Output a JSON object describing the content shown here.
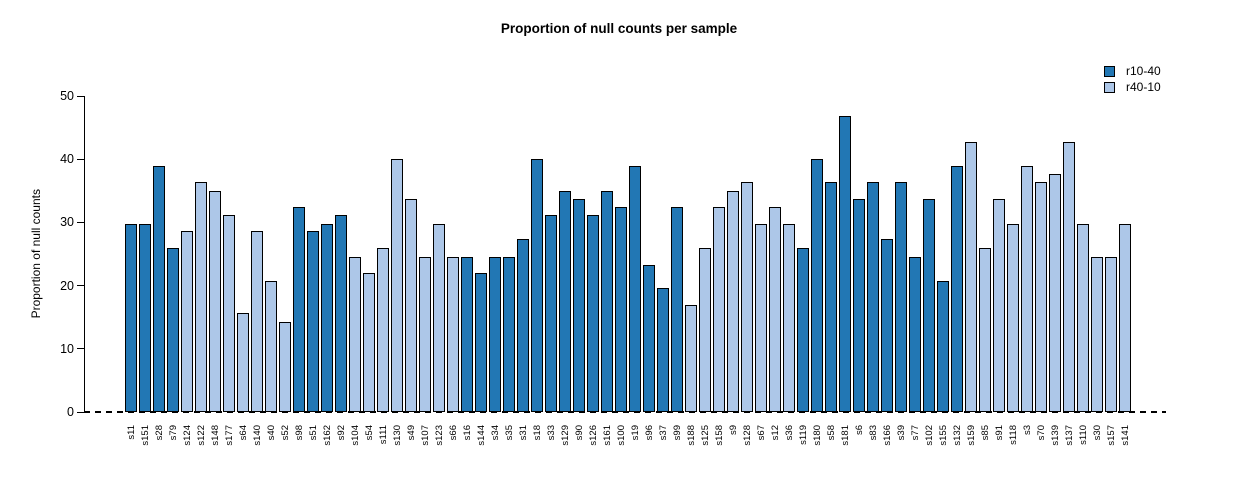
{
  "chart_data": {
    "type": "bar",
    "title": "Proportion of null counts per sample",
    "ylabel": "Proportion of null counts",
    "xlabel": "",
    "ylim": [
      0,
      50
    ],
    "yticks": [
      0,
      10,
      20,
      30,
      40,
      50
    ],
    "grid": false,
    "legend_position": "top-right",
    "zero_line_style": "dashed-black",
    "legend": [
      {
        "label": "r10-40",
        "color": "#2277b4"
      },
      {
        "label": "r40-10",
        "color": "#adc7e8"
      }
    ],
    "bars": [
      {
        "sample": "s11",
        "value": 29.8,
        "series": "r10-40"
      },
      {
        "sample": "s151",
        "value": 29.8,
        "series": "r10-40"
      },
      {
        "sample": "s28",
        "value": 38.9,
        "series": "r10-40"
      },
      {
        "sample": "s79",
        "value": 26.0,
        "series": "r10-40"
      },
      {
        "sample": "s124",
        "value": 28.6,
        "series": "r40-10"
      },
      {
        "sample": "s122",
        "value": 36.4,
        "series": "r40-10"
      },
      {
        "sample": "s148",
        "value": 35.0,
        "series": "r40-10"
      },
      {
        "sample": "s177",
        "value": 31.2,
        "series": "r40-10"
      },
      {
        "sample": "s64",
        "value": 15.6,
        "series": "r40-10"
      },
      {
        "sample": "s140",
        "value": 28.6,
        "series": "r40-10"
      },
      {
        "sample": "s40",
        "value": 20.8,
        "series": "r40-10"
      },
      {
        "sample": "s52",
        "value": 14.3,
        "series": "r40-10"
      },
      {
        "sample": "s98",
        "value": 32.4,
        "series": "r10-40"
      },
      {
        "sample": "s51",
        "value": 28.6,
        "series": "r10-40"
      },
      {
        "sample": "s162",
        "value": 29.8,
        "series": "r10-40"
      },
      {
        "sample": "s92",
        "value": 31.2,
        "series": "r10-40"
      },
      {
        "sample": "s104",
        "value": 24.5,
        "series": "r40-10"
      },
      {
        "sample": "s54",
        "value": 22.0,
        "series": "r40-10"
      },
      {
        "sample": "s111",
        "value": 26.0,
        "series": "r40-10"
      },
      {
        "sample": "s130",
        "value": 40.1,
        "series": "r40-10"
      },
      {
        "sample": "s49",
        "value": 33.7,
        "series": "r40-10"
      },
      {
        "sample": "s107",
        "value": 24.5,
        "series": "r40-10"
      },
      {
        "sample": "s123",
        "value": 29.8,
        "series": "r40-10"
      },
      {
        "sample": "s66",
        "value": 24.5,
        "series": "r40-10"
      },
      {
        "sample": "s16",
        "value": 24.5,
        "series": "r10-40"
      },
      {
        "sample": "s144",
        "value": 22.0,
        "series": "r10-40"
      },
      {
        "sample": "s34",
        "value": 24.5,
        "series": "r10-40"
      },
      {
        "sample": "s35",
        "value": 24.5,
        "series": "r10-40"
      },
      {
        "sample": "s31",
        "value": 27.3,
        "series": "r10-40"
      },
      {
        "sample": "s18",
        "value": 40.1,
        "series": "r10-40"
      },
      {
        "sample": "s33",
        "value": 31.2,
        "series": "r10-40"
      },
      {
        "sample": "s129",
        "value": 35.0,
        "series": "r10-40"
      },
      {
        "sample": "s90",
        "value": 33.7,
        "series": "r10-40"
      },
      {
        "sample": "s126",
        "value": 31.2,
        "series": "r10-40"
      },
      {
        "sample": "s161",
        "value": 35.0,
        "series": "r10-40"
      },
      {
        "sample": "s100",
        "value": 32.4,
        "series": "r10-40"
      },
      {
        "sample": "s19",
        "value": 38.9,
        "series": "r10-40"
      },
      {
        "sample": "s96",
        "value": 23.3,
        "series": "r10-40"
      },
      {
        "sample": "s37",
        "value": 19.6,
        "series": "r10-40"
      },
      {
        "sample": "s99",
        "value": 32.4,
        "series": "r10-40"
      },
      {
        "sample": "s188",
        "value": 16.9,
        "series": "r40-10"
      },
      {
        "sample": "s125",
        "value": 26.0,
        "series": "r40-10"
      },
      {
        "sample": "s158",
        "value": 32.4,
        "series": "r40-10"
      },
      {
        "sample": "s9",
        "value": 35.0,
        "series": "r40-10"
      },
      {
        "sample": "s128",
        "value": 36.4,
        "series": "r40-10"
      },
      {
        "sample": "s67",
        "value": 29.8,
        "series": "r40-10"
      },
      {
        "sample": "s12",
        "value": 32.4,
        "series": "r40-10"
      },
      {
        "sample": "s36",
        "value": 29.8,
        "series": "r40-10"
      },
      {
        "sample": "s119",
        "value": 26.0,
        "series": "r10-40"
      },
      {
        "sample": "s180",
        "value": 40.1,
        "series": "r10-40"
      },
      {
        "sample": "s58",
        "value": 36.4,
        "series": "r10-40"
      },
      {
        "sample": "s181",
        "value": 46.8,
        "series": "r10-40"
      },
      {
        "sample": "s6",
        "value": 33.7,
        "series": "r10-40"
      },
      {
        "sample": "s83",
        "value": 36.4,
        "series": "r10-40"
      },
      {
        "sample": "s166",
        "value": 27.3,
        "series": "r10-40"
      },
      {
        "sample": "s39",
        "value": 36.4,
        "series": "r10-40"
      },
      {
        "sample": "s77",
        "value": 24.5,
        "series": "r10-40"
      },
      {
        "sample": "s102",
        "value": 33.7,
        "series": "r10-40"
      },
      {
        "sample": "s155",
        "value": 20.8,
        "series": "r10-40"
      },
      {
        "sample": "s132",
        "value": 38.9,
        "series": "r10-40"
      },
      {
        "sample": "s159",
        "value": 42.8,
        "series": "r40-10"
      },
      {
        "sample": "s85",
        "value": 26.0,
        "series": "r40-10"
      },
      {
        "sample": "s91",
        "value": 33.7,
        "series": "r40-10"
      },
      {
        "sample": "s118",
        "value": 29.8,
        "series": "r40-10"
      },
      {
        "sample": "s3",
        "value": 38.9,
        "series": "r40-10"
      },
      {
        "sample": "s70",
        "value": 36.4,
        "series": "r40-10"
      },
      {
        "sample": "s139",
        "value": 37.6,
        "series": "r40-10"
      },
      {
        "sample": "s137",
        "value": 42.8,
        "series": "r40-10"
      },
      {
        "sample": "s110",
        "value": 29.8,
        "series": "r40-10"
      },
      {
        "sample": "s30",
        "value": 24.5,
        "series": "r40-10"
      },
      {
        "sample": "s157",
        "value": 24.5,
        "series": "r40-10"
      },
      {
        "sample": "s141",
        "value": 29.8,
        "series": "r40-10"
      }
    ]
  }
}
